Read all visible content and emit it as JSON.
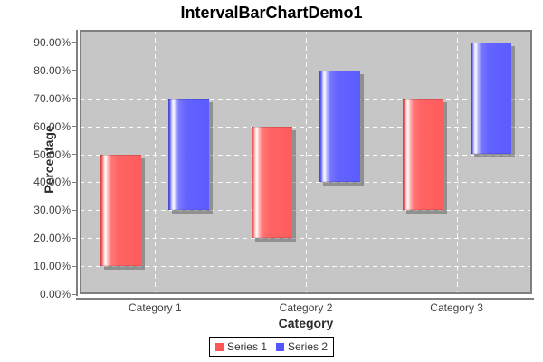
{
  "chart_data": {
    "type": "bar",
    "subtype": "interval-bar",
    "title": "IntervalBarChartDemo1",
    "xlabel": "Category",
    "ylabel": "Percentage",
    "categories": [
      "Category 1",
      "Category 2",
      "Category 3"
    ],
    "series": [
      {
        "name": "Series 1",
        "color": "#ff5555",
        "intervals": [
          {
            "low": 10,
            "high": 50
          },
          {
            "low": 20,
            "high": 60
          },
          {
            "low": 30,
            "high": 70
          }
        ]
      },
      {
        "name": "Series 2",
        "color": "#5555ff",
        "intervals": [
          {
            "low": 30,
            "high": 70
          },
          {
            "low": 40,
            "high": 80
          },
          {
            "low": 50,
            "high": 90
          }
        ]
      }
    ],
    "value_unit": "percent",
    "ylim": [
      0,
      94.5
    ],
    "yticks": [
      0,
      10,
      20,
      30,
      40,
      50,
      60,
      70,
      80,
      90
    ],
    "ytick_labels": [
      "0.00%",
      "10.00%",
      "20.00%",
      "30.00%",
      "40.00%",
      "50.00%",
      "60.00%",
      "70.00%",
      "80.00%",
      "90.00%"
    ],
    "grid": true,
    "legend_position": "bottom",
    "colors": {
      "plot_bg": "#c6c6c6",
      "gridline": "#ffffff",
      "axis": "#7f7f7f",
      "tick_text": "#3f3f3f",
      "title_text": "#000000",
      "shadow": "rgba(90,90,90,0.5)",
      "legend_bg": "#ffffff",
      "legend_border": "#000000"
    }
  }
}
